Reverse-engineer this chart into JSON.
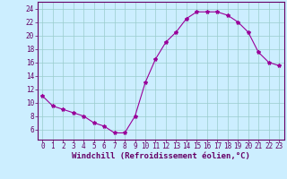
{
  "x": [
    0,
    1,
    2,
    3,
    4,
    5,
    6,
    7,
    8,
    9,
    10,
    11,
    12,
    13,
    14,
    15,
    16,
    17,
    18,
    19,
    20,
    21,
    22,
    23
  ],
  "y": [
    11,
    9.5,
    9,
    8.5,
    8,
    7,
    6.5,
    5.5,
    5.5,
    8,
    13,
    16.5,
    19,
    20.5,
    22.5,
    23.5,
    23.5,
    23.5,
    23,
    22,
    20.5,
    17.5,
    16,
    15.5
  ],
  "line_color": "#990099",
  "marker": "*",
  "marker_size": 3,
  "bg_color": "#cceeff",
  "grid_color": "#99cccc",
  "xlabel": "Windchill (Refroidissement éolien,°C)",
  "xlabel_color": "#660066",
  "tick_color": "#660066",
  "ylim": [
    4.5,
    25
  ],
  "xlim": [
    -0.5,
    23.5
  ],
  "yticks": [
    6,
    8,
    10,
    12,
    14,
    16,
    18,
    20,
    22,
    24
  ],
  "xticks": [
    0,
    1,
    2,
    3,
    4,
    5,
    6,
    7,
    8,
    9,
    10,
    11,
    12,
    13,
    14,
    15,
    16,
    17,
    18,
    19,
    20,
    21,
    22,
    23
  ],
  "xtick_labels": [
    "0",
    "1",
    "2",
    "3",
    "4",
    "5",
    "6",
    "7",
    "8",
    "9",
    "10",
    "11",
    "12",
    "13",
    "14",
    "15",
    "16",
    "17",
    "18",
    "19",
    "20",
    "21",
    "22",
    "23"
  ],
  "ytick_labels": [
    "6",
    "8",
    "10",
    "12",
    "14",
    "16",
    "18",
    "20",
    "22",
    "24"
  ],
  "axis_border_color": "#660066",
  "tick_fontsize": 5.5,
  "xlabel_fontsize": 6.5,
  "xlabel_fontweight": "bold"
}
